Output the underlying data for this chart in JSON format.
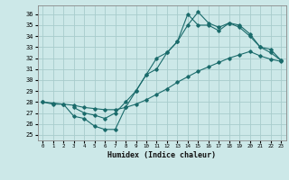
{
  "xlabel": "Humidex (Indice chaleur)",
  "xlim": [
    -0.5,
    23.5
  ],
  "ylim": [
    24.5,
    36.8
  ],
  "xticks": [
    0,
    1,
    2,
    3,
    4,
    5,
    6,
    7,
    8,
    9,
    10,
    11,
    12,
    13,
    14,
    15,
    16,
    17,
    18,
    19,
    20,
    21,
    22,
    23
  ],
  "yticks": [
    25,
    26,
    27,
    28,
    29,
    30,
    31,
    32,
    33,
    34,
    35,
    36
  ],
  "bg_color": "#cce8e8",
  "grid_color": "#a8cccc",
  "line_color": "#1a6b6b",
  "line1_x": [
    0,
    1,
    2,
    3,
    4,
    5,
    6,
    7,
    8,
    9,
    10,
    11,
    12,
    13,
    14,
    15,
    16,
    17,
    18,
    19,
    20,
    21,
    22,
    23
  ],
  "line1_y": [
    28.0,
    27.8,
    27.8,
    26.7,
    26.5,
    25.8,
    25.5,
    25.5,
    27.5,
    29.0,
    30.5,
    32.0,
    32.5,
    33.5,
    36.0,
    35.0,
    35.0,
    34.5,
    35.2,
    34.8,
    34.0,
    33.0,
    32.5,
    31.8
  ],
  "line2_x": [
    0,
    1,
    2,
    3,
    4,
    5,
    6,
    7,
    8,
    9,
    10,
    11,
    12,
    13,
    14,
    15,
    16,
    17,
    18,
    19,
    20,
    21,
    22,
    23
  ],
  "line2_y": [
    28.0,
    27.9,
    27.8,
    27.7,
    27.5,
    27.4,
    27.3,
    27.3,
    27.5,
    27.8,
    28.2,
    28.7,
    29.2,
    29.8,
    30.3,
    30.8,
    31.2,
    31.6,
    32.0,
    32.3,
    32.6,
    32.2,
    31.9,
    31.7
  ],
  "line3_x": [
    3,
    4,
    5,
    6,
    7,
    8,
    9,
    10,
    11,
    12,
    13,
    14,
    15,
    16,
    17,
    18,
    19,
    20,
    21,
    22,
    23
  ],
  "line3_y": [
    27.5,
    27.0,
    26.8,
    26.5,
    27.0,
    28.0,
    29.0,
    30.5,
    31.0,
    32.5,
    33.5,
    35.0,
    36.2,
    35.2,
    34.8,
    35.2,
    35.0,
    34.2,
    33.0,
    32.8,
    31.8
  ]
}
